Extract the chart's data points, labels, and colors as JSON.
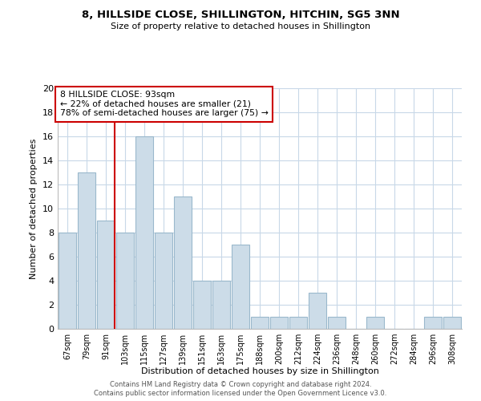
{
  "title": "8, HILLSIDE CLOSE, SHILLINGTON, HITCHIN, SG5 3NN",
  "subtitle": "Size of property relative to detached houses in Shillington",
  "xlabel": "Distribution of detached houses by size in Shillington",
  "ylabel": "Number of detached properties",
  "bar_labels": [
    "67sqm",
    "79sqm",
    "91sqm",
    "103sqm",
    "115sqm",
    "127sqm",
    "139sqm",
    "151sqm",
    "163sqm",
    "175sqm",
    "188sqm",
    "200sqm",
    "212sqm",
    "224sqm",
    "236sqm",
    "248sqm",
    "260sqm",
    "272sqm",
    "284sqm",
    "296sqm",
    "308sqm"
  ],
  "bar_values": [
    8,
    13,
    9,
    8,
    16,
    8,
    11,
    4,
    4,
    7,
    1,
    1,
    1,
    3,
    1,
    0,
    1,
    0,
    0,
    1,
    1
  ],
  "bar_color": "#ccdce8",
  "bar_edge_color": "#9ab8cc",
  "highlight_index": 2,
  "highlight_line_color": "#cc0000",
  "annotation_title": "8 HILLSIDE CLOSE: 93sqm",
  "annotation_line1": "← 22% of detached houses are smaller (21)",
  "annotation_line2": "78% of semi-detached houses are larger (75) →",
  "annotation_box_color": "#ffffff",
  "annotation_box_edge": "#cc0000",
  "ylim": [
    0,
    20
  ],
  "yticks": [
    0,
    2,
    4,
    6,
    8,
    10,
    12,
    14,
    16,
    18,
    20
  ],
  "footer_line1": "Contains HM Land Registry data © Crown copyright and database right 2024.",
  "footer_line2": "Contains public sector information licensed under the Open Government Licence v3.0.",
  "background_color": "#ffffff",
  "grid_color": "#c8d8e8"
}
